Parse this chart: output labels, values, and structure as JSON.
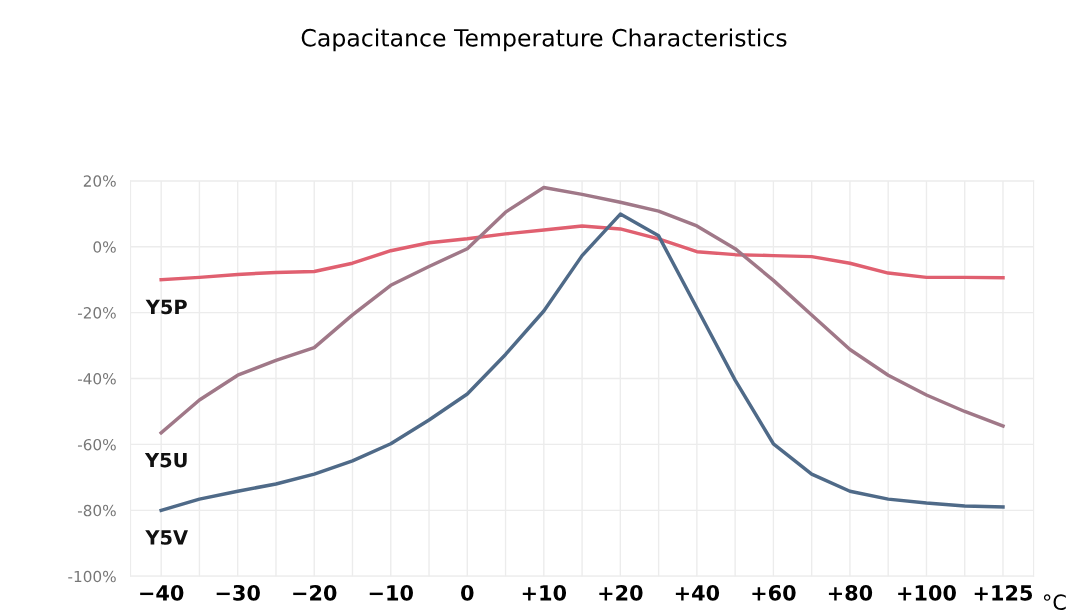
{
  "chart_data": {
    "type": "line",
    "title": "Capacitance Temperature Characteristics",
    "xlabel": "°C",
    "categories": [
      "−40",
      null,
      "−30",
      null,
      "−20",
      null,
      "−10",
      null,
      "0",
      null,
      "+10",
      null,
      "+20",
      null,
      "+40",
      null,
      "+60",
      null,
      "+80",
      null,
      "+100",
      null,
      "+125"
    ],
    "series": [
      {
        "name": "Y5P",
        "color": "#e06070",
        "values": [
          -10,
          -9.3,
          -8.4,
          -7.8,
          -7.5,
          -5,
          -1.2,
          1.2,
          2.4,
          3.9,
          5.1,
          6.3,
          5.4,
          2.4,
          -1.5,
          -2.4,
          -2.7,
          -3,
          -5,
          -8,
          -9.3,
          -9.3,
          -9.4
        ]
      },
      {
        "name": "Y5U",
        "color": "#a07888",
        "values": [
          -56.5,
          -46.5,
          -39,
          -34.5,
          -30.6,
          -20.7,
          -11.7,
          -6,
          -0.6,
          10.5,
          18,
          15.9,
          13.5,
          10.8,
          6.3,
          -0.6,
          -10.2,
          -20.7,
          -31.2,
          -39,
          -45,
          -50,
          -54.4
        ]
      },
      {
        "name": "Y5V",
        "color": "#4f6a88",
        "values": [
          -80,
          -76.6,
          -74.2,
          -72,
          -69,
          -65,
          -59.8,
          -52.6,
          -44.7,
          -32.7,
          -19.5,
          -2.7,
          9.9,
          3.3,
          -18.6,
          -40.5,
          -59.8,
          -69,
          -74.2,
          -76.6,
          -77.8,
          -78.7,
          -79
        ]
      }
    ],
    "ylim": [
      -100,
      20
    ],
    "yticks": [
      {
        "value": -100,
        "label": "-100%"
      },
      {
        "value": -80,
        "label": "-80%"
      },
      {
        "value": -60,
        "label": "-60%"
      },
      {
        "value": -40,
        "label": "-40%"
      },
      {
        "value": -20,
        "label": "-20%"
      },
      {
        "value": 0,
        "label": "0%"
      },
      {
        "value": 20,
        "label": "20%"
      }
    ],
    "grid": true,
    "legend": false,
    "marker": "none",
    "line_style": "solid"
  }
}
